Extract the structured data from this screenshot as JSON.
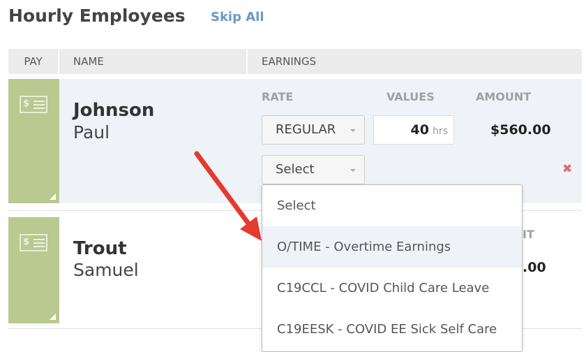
{
  "title": "Hourly Employees",
  "skip_all": "Skip All",
  "columns": {
    "pay": "PAY",
    "name": "NAME",
    "earnings": "EARNINGS"
  },
  "employees": [
    {
      "last": "Johnson",
      "first": "Paul",
      "rate_label": "RATE",
      "values_label": "VALUES",
      "amount_label": "AMOUNT",
      "rate": "REGULAR",
      "hours": "40",
      "unit": "hrs",
      "amount": "$560.00",
      "new_rate": "Select"
    },
    {
      "last": "Trout",
      "first": "Samuel",
      "amount_label_partial": "IT",
      "amount_partial": ".00"
    }
  ],
  "dropdown": {
    "options": [
      "Select",
      "O/TIME - Overtime Earnings",
      "C19CCL - COVID Child Care Leave",
      "C19EESK - COVID EE Sick Self Care"
    ],
    "highlighted": "O/TIME - Overtime Earnings"
  },
  "colors": {
    "pay_green": "#b9c98f",
    "link": "#6a9ac4",
    "arrow": "#e53a2f",
    "remove": "#e06a6a"
  }
}
